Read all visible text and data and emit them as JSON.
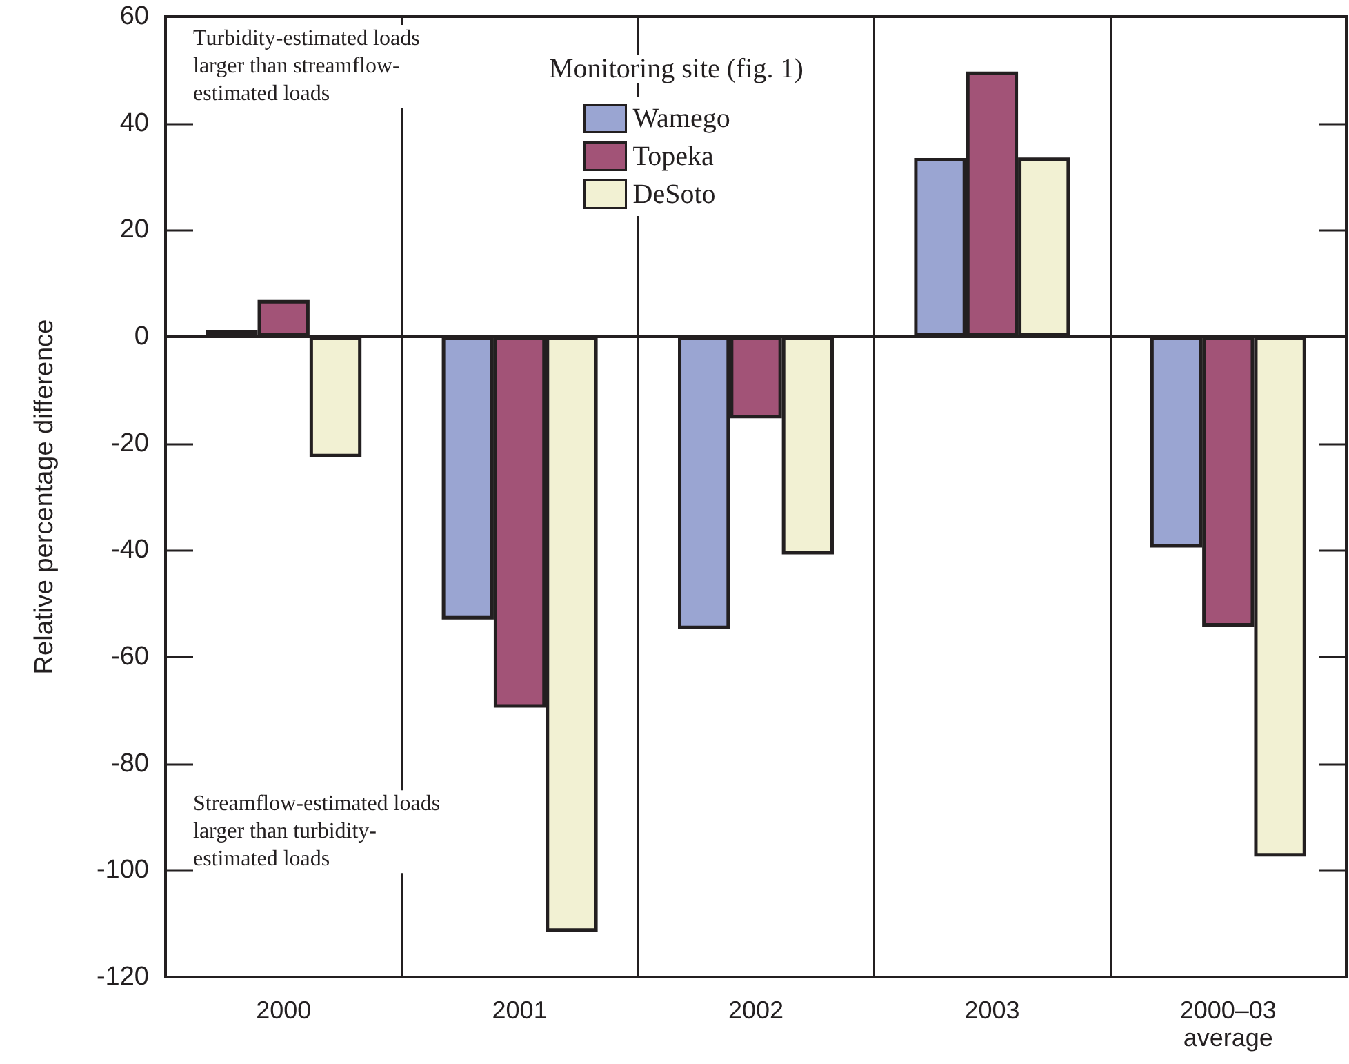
{
  "chart_data": {
    "type": "bar",
    "ylabel": "Relative percentage difference",
    "legend_title": "Monitoring site (fig. 1)",
    "legend": "top",
    "grid": "x",
    "categories": [
      "2000",
      "2001",
      "2002",
      "2003",
      "2000–03\naverage"
    ],
    "series": [
      {
        "name": "Wamego",
        "color": "#9aa5d2",
        "values": [
          1.3,
          -53,
          -54.8,
          33.5,
          -39.5
        ]
      },
      {
        "name": "Topeka",
        "color": "#a25377",
        "values": [
          6.9,
          -69.5,
          -15.3,
          49.7,
          -54.3
        ]
      },
      {
        "name": "DeSoto",
        "color": "#f2f1d3",
        "values": [
          -22.6,
          -111.5,
          -40.8,
          33.6,
          -97.4
        ]
      }
    ],
    "ylim": [
      -120,
      60
    ],
    "yticks": [
      -120,
      -100,
      -80,
      -60,
      -40,
      -20,
      0,
      20,
      40,
      60
    ],
    "annotations": [
      "Turbidity-estimated loads\nlarger than streamflow-\nestimated loads",
      "Streamflow-estimated loads\nlarger than turbidity-\nestimated loads"
    ]
  }
}
